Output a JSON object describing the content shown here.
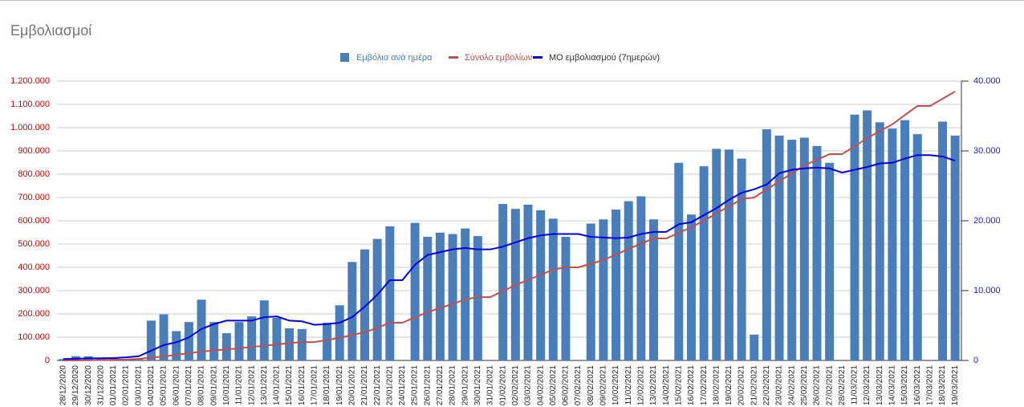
{
  "chart_data": {
    "type": "bar",
    "title": "Εμβολιασμοί",
    "categories": [
      "28/12/2020",
      "29/12/2020",
      "30/12/2020",
      "31/12/2020",
      "01/01/2021",
      "02/01/2021",
      "03/01/2021",
      "04/01/2021",
      "05/01/2021",
      "06/01/2021",
      "07/01/2021",
      "08/01/2021",
      "09/01/2021",
      "10/01/2021",
      "11/01/2021",
      "12/01/2021",
      "13/01/2021",
      "14/01/2021",
      "15/01/2021",
      "16/01/2021",
      "17/01/2021",
      "18/01/2021",
      "19/01/2021",
      "20/01/2021",
      "21/01/2021",
      "22/01/2021",
      "23/01/2021",
      "24/01/2021",
      "25/01/2021",
      "26/01/2021",
      "27/01/2021",
      "28/01/2021",
      "29/01/2021",
      "30/01/2021",
      "31/01/2021",
      "01/02/2021",
      "02/02/2021",
      "03/02/2021",
      "04/02/2021",
      "05/02/2021",
      "06/02/2021",
      "07/02/2021",
      "08/02/2021",
      "09/02/2021",
      "10/02/2021",
      "11/02/2021",
      "12/02/2021",
      "13/02/2021",
      "14/02/2021",
      "15/02/2021",
      "16/02/2021",
      "17/02/2021",
      "18/02/2021",
      "19/02/2021",
      "20/02/2021",
      "21/02/2021",
      "22/02/2021",
      "23/02/2021",
      "24/02/2021",
      "25/02/2021",
      "26/02/2021",
      "27/02/2021",
      "28/02/2021",
      "11/03/2021",
      "12/03/2021",
      "13/03/2021",
      "14/03/2021",
      "15/03/2021",
      "16/03/2021",
      "17/03/2021",
      "18/03/2021",
      "19/03/2021"
    ],
    "series": [
      {
        "name": "Εμβόλια ανά ημέρα",
        "type": "bar",
        "axis": "y2",
        "color": "#4a7ebb",
        "values": [
          200,
          600,
          600,
          300,
          300,
          200,
          300,
          5700,
          6600,
          4200,
          5500,
          8700,
          5500,
          3900,
          5500,
          6300,
          8600,
          6100,
          4600,
          4500,
          null,
          5400,
          7900,
          14100,
          15900,
          17400,
          19200,
          null,
          19700,
          17700,
          18300,
          18100,
          18900,
          17800,
          null,
          22400,
          21700,
          22300,
          21500,
          20300,
          17700,
          null,
          19600,
          20200,
          21600,
          22800,
          23500,
          20200,
          null,
          28300,
          20900,
          27800,
          30300,
          30200,
          28900,
          3700,
          33100,
          32200,
          31600,
          31900,
          30700,
          28300,
          null,
          35200,
          35800,
          34100,
          33200,
          34400,
          32400,
          null,
          34200,
          32200
        ]
      },
      {
        "name": "Σύνολο εμβολίων",
        "type": "line",
        "color": "#c0504d",
        "values": [
          0,
          0,
          1000,
          2000,
          3000,
          4000,
          7000,
          12000,
          17000,
          24000,
          31000,
          38000,
          43000,
          47000,
          52000,
          58000,
          63000,
          69000,
          74000,
          79000,
          79000,
          88000,
          97000,
          109000,
          121000,
          140000,
          162000,
          162000,
          185000,
          207000,
          225000,
          243000,
          262000,
          272000,
          272000,
          298000,
          324000,
          346000,
          368000,
          390000,
          400000,
          400000,
          415000,
          431000,
          455000,
          479000,
          502000,
          524000,
          524000,
          548000,
          572000,
          601000,
          631000,
          662000,
          693000,
          700000,
          735000,
          769000,
          804000,
          838000,
          862000,
          886000,
          886000,
          920000,
          955000,
          985000,
          1014000,
          1054000,
          1093000,
          1093000,
          1124000,
          1155000
        ]
      },
      {
        "name": "ΜΟ εμβολιασμού (7ημερών)",
        "type": "line",
        "axis": "y2",
        "color": "#0000e0",
        "values": [
          200,
          250,
          300,
          320,
          350,
          450,
          600,
          1400,
          2200,
          2600,
          3300,
          4500,
          5200,
          5700,
          5700,
          5700,
          6200,
          6300,
          5700,
          5600,
          5100,
          5200,
          5400,
          6200,
          7700,
          9400,
          11500,
          11500,
          13700,
          15100,
          15500,
          15900,
          16100,
          15900,
          15900,
          16300,
          16900,
          17500,
          17900,
          18100,
          18100,
          18100,
          17700,
          17600,
          17500,
          17600,
          18100,
          18400,
          18400,
          19500,
          19800,
          20800,
          21800,
          23000,
          24000,
          24500,
          25200,
          26800,
          27300,
          27500,
          27600,
          27500,
          26900,
          27300,
          27700,
          28200,
          28300,
          28900,
          29400,
          29400,
          29200,
          28600
        ]
      }
    ],
    "ylim": [
      0,
      1200000
    ],
    "yticks": [
      0,
      {
        "value": 100000,
        "label": "100.000"
      },
      {
        "value": 200000,
        "label": "200.000"
      },
      {
        "value": 300000,
        "label": "300.000"
      },
      {
        "value": 400000,
        "label": "400.000"
      },
      {
        "value": 500000,
        "label": "500.000"
      },
      {
        "value": 600000,
        "label": "600.000"
      },
      {
        "value": 700000,
        "label": "700.000"
      },
      {
        "value": 800000,
        "label": "800.000"
      },
      {
        "value": 900000,
        "label": "900.000"
      },
      {
        "value": 1000000,
        "label": "1.000.000"
      },
      {
        "value": 1100000,
        "label": "1.100.000"
      },
      {
        "value": 1200000,
        "label": "1.200.000"
      }
    ],
    "y2lim": [
      0,
      40000
    ],
    "y2ticks": [
      0,
      {
        "value": 10000,
        "label": "10.000"
      },
      {
        "value": 20000,
        "label": "20.000"
      },
      {
        "value": 30000,
        "label": "30.000"
      },
      {
        "value": 40000,
        "label": "40.000"
      }
    ],
    "grid": true,
    "legend": "top"
  }
}
